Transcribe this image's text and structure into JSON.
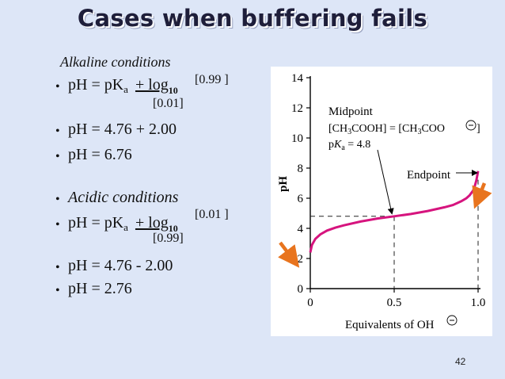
{
  "slide": {
    "title": "Cases when buffering fails",
    "page_number": "42"
  },
  "alkaline": {
    "heading": "Alkaline conditions",
    "line1_a": "pH = pK",
    "line1_sub": "a",
    "line1_b": "+ log",
    "line1_log": "10",
    "numerator": "[0.99 ]",
    "denominator": "[0.01]",
    "line2": "pH = 4.76 + 2.00",
    "line3": "pH = 6.76"
  },
  "acidic": {
    "heading": "Acidic conditions",
    "line1_a": "pH = pK",
    "line1_sub": "a",
    "line1_b": "+ log",
    "line1_log": "10",
    "numerator": "[0.01 ]",
    "denominator": "[0.99]",
    "line2": "pH = 4.76 - 2.00",
    "line3": "pH = 2.76"
  },
  "chart_data": {
    "type": "line",
    "xlabel": "Equivalents of OH",
    "ylabel": "pH",
    "xlim": [
      0,
      1
    ],
    "ylim": [
      0,
      14
    ],
    "x_ticks": [
      "0",
      "0.5",
      "1.0"
    ],
    "y_ticks": [
      "0",
      "2",
      "4",
      "6",
      "8",
      "10",
      "12",
      "14"
    ],
    "curve_color": "#d6147e",
    "arrow_color": "#e8741e",
    "series": [
      {
        "x": [
          0,
          0.01,
          0.03,
          0.06,
          0.1,
          0.15,
          0.2,
          0.3,
          0.4,
          0.5,
          0.6,
          0.7,
          0.8,
          0.85,
          0.9,
          0.93,
          0.95,
          0.97,
          0.98,
          0.99,
          1.0
        ],
        "y": [
          2.4,
          2.9,
          3.3,
          3.6,
          3.85,
          4.05,
          4.2,
          4.45,
          4.65,
          4.8,
          4.95,
          5.15,
          5.4,
          5.55,
          5.8,
          6.0,
          6.2,
          6.5,
          6.8,
          7.2,
          7.8
        ]
      }
    ],
    "annotations": {
      "midpoint_title": "Midpoint",
      "midpoint_line2": "[CH3COOH] = [CH3COO  ]",
      "midpoint_line3": "pKa = 4.8",
      "midpoint_x": 0.5,
      "midpoint_y": 4.8,
      "endpoint": "Endpoint",
      "endpoint_x": 1.0
    }
  }
}
